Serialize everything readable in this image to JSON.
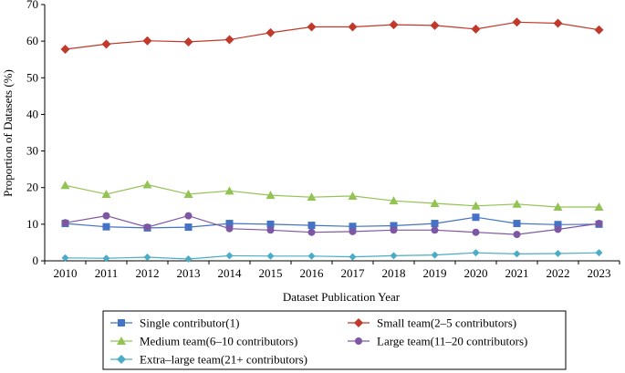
{
  "chart_data": {
    "type": "line",
    "title": "",
    "xlabel": "Dataset Publication Year",
    "ylabel": "Proportion of Datasets (%)",
    "ylim": [
      0,
      70
    ],
    "yticks": [
      0,
      10,
      20,
      30,
      40,
      50,
      60,
      70
    ],
    "grid": false,
    "legend_position": "bottom",
    "x": [
      "2010",
      "2011",
      "2012",
      "2013",
      "2014",
      "2015",
      "2016",
      "2017",
      "2018",
      "2019",
      "2020",
      "2021",
      "2022",
      "2023"
    ],
    "series": [
      {
        "name": "Single contributor(1)",
        "color": "#4472C4",
        "marker": "square",
        "values": [
          10.2,
          9.3,
          9.0,
          9.2,
          10.2,
          10.0,
          9.7,
          9.4,
          9.6,
          10.2,
          11.9,
          10.2,
          9.9,
          10.0
        ]
      },
      {
        "name": "Small team(2–5 contributors)",
        "color": "#C0392B",
        "marker": "diamond",
        "values": [
          57.8,
          59.2,
          60.1,
          59.8,
          60.4,
          62.3,
          63.9,
          63.9,
          64.5,
          64.3,
          63.3,
          65.2,
          64.9,
          63.1
        ]
      },
      {
        "name": "Medium team(6–10 contributors)",
        "color": "#92C353",
        "marker": "triangle",
        "values": [
          20.6,
          18.2,
          20.8,
          18.2,
          19.1,
          17.9,
          17.4,
          17.7,
          16.4,
          15.7,
          15.0,
          15.5,
          14.7,
          14.7
        ]
      },
      {
        "name": "Large team(11–20 contributors)",
        "color": "#7E57A4",
        "marker": "circle",
        "values": [
          10.4,
          12.3,
          9.2,
          12.3,
          8.8,
          8.4,
          7.8,
          8.0,
          8.4,
          8.4,
          7.8,
          7.2,
          8.6,
          10.2
        ]
      },
      {
        "name": "Extra–large team(21+ contributors)",
        "color": "#4BACC6",
        "marker": "diamond",
        "values": [
          0.8,
          0.7,
          1.0,
          0.5,
          1.4,
          1.3,
          1.3,
          1.1,
          1.4,
          1.6,
          2.2,
          1.9,
          2.0,
          2.2
        ]
      }
    ]
  }
}
